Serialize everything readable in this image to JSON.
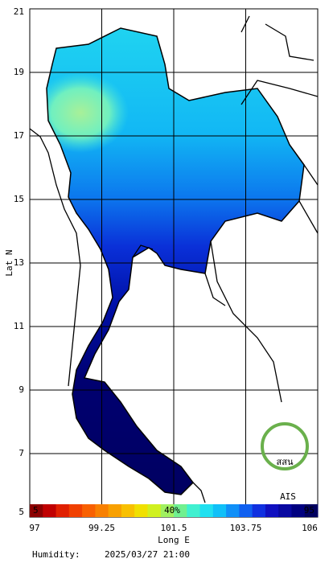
{
  "map": {
    "axes": {
      "y_label": "Lat N",
      "x_label": "Long E",
      "lat_ticks": [
        21,
        19,
        17,
        15,
        13,
        11,
        9,
        7,
        5
      ],
      "lon_ticks": [
        97,
        99.25,
        101.5,
        103.75,
        106
      ]
    },
    "colorbar": {
      "left_label": "5",
      "center_label": "40%",
      "right_label": "95"
    },
    "logo": {
      "thai_text": "สสน",
      "text": "AIS"
    },
    "footer": {
      "variable": "Humidity:",
      "timestamp": "2025/03/27 21:00"
    }
  }
}
